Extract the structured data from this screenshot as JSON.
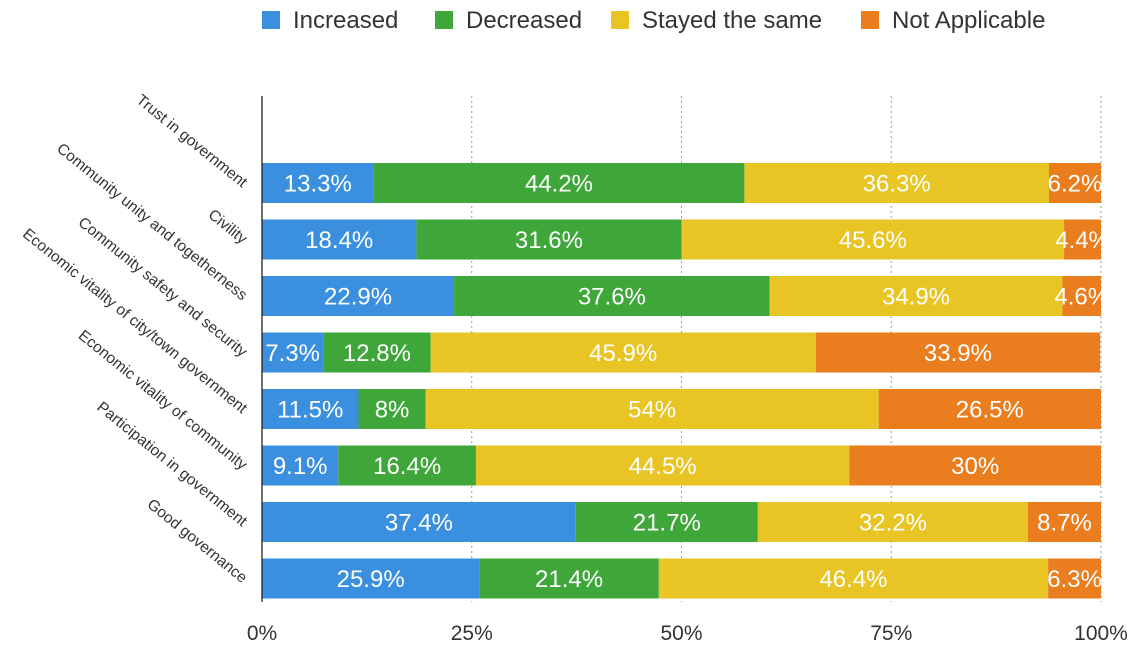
{
  "chart_data": {
    "type": "bar",
    "orientation": "horizontal",
    "stacked": true,
    "title": "",
    "categories": [
      "Trust in government",
      "Civility",
      "Community unity and togetherness",
      "Community safety and security",
      "Economic vitality of city/town government",
      "Economic vitality of community",
      "Participation in government",
      "Good governance"
    ],
    "series": [
      {
        "name": "Increased",
        "color": "#3a8fdf",
        "values": [
          13.3,
          18.4,
          22.9,
          7.3,
          11.5,
          9.1,
          37.4,
          25.9
        ],
        "labels": [
          "13.3%",
          "18.4%",
          "22.9%",
          "7.3%",
          "11.5%",
          "9.1%",
          "37.4%",
          "25.9%"
        ]
      },
      {
        "name": "Decreased",
        "color": "#3fa73a",
        "values": [
          44.2,
          31.6,
          37.6,
          12.8,
          8,
          16.4,
          21.7,
          21.4
        ],
        "labels": [
          "44.2%",
          "31.6%",
          "37.6%",
          "12.8%",
          "8%",
          "16.4%",
          "21.7%",
          "21.4%"
        ]
      },
      {
        "name": "Stayed the same",
        "color": "#e8c524",
        "values": [
          36.3,
          45.6,
          34.9,
          45.9,
          54,
          44.5,
          32.2,
          46.4
        ],
        "labels": [
          "36.3%",
          "45.6%",
          "34.9%",
          "45.9%",
          "54%",
          "44.5%",
          "32.2%",
          "46.4%"
        ]
      },
      {
        "name": "Not Applicable",
        "color": "#ea7d1e",
        "values": [
          6.2,
          4.4,
          4.6,
          33.9,
          26.5,
          30,
          8.7,
          6.3
        ],
        "labels": [
          "6.2%",
          "4.4%",
          "4.6%",
          "33.9%",
          "26.5%",
          "30%",
          "8.7%",
          "6.3%"
        ]
      }
    ],
    "x_ticks": [
      "0%",
      "25%",
      "50%",
      "75%",
      "100%"
    ],
    "xlim": [
      0,
      100
    ],
    "grid": "vertical dotted",
    "legend": "top"
  }
}
